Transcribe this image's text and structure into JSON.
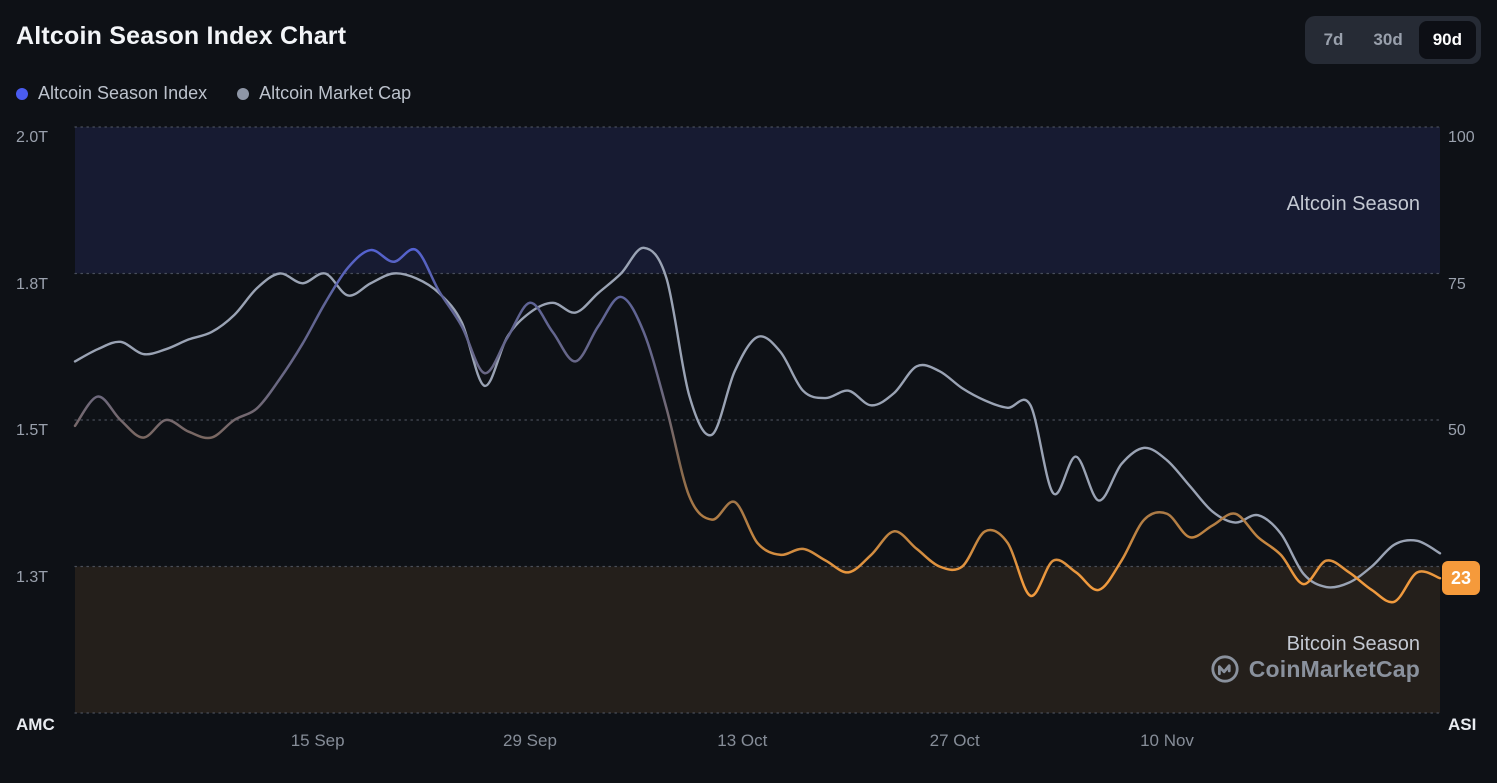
{
  "header": {
    "title": "Altcoin Season Index Chart"
  },
  "ranges": [
    {
      "label": "7d",
      "active": false
    },
    {
      "label": "30d",
      "active": false
    },
    {
      "label": "90d",
      "active": true
    }
  ],
  "legend": [
    {
      "label": "Altcoin Season Index",
      "color": "#4a5cf0"
    },
    {
      "label": "Altcoin Market Cap",
      "color": "#8e96a6"
    }
  ],
  "corner_labels": {
    "left": "AMC",
    "right": "ASI"
  },
  "badge": {
    "value": "23",
    "bg": "#f59a3b",
    "text_color": "#ffffff"
  },
  "watermark": {
    "text": "CoinMarketCap"
  },
  "colors": {
    "background": "#0e1116",
    "gridline": "#565c69",
    "axis_text": "#9aa1ad",
    "band_label": "#c3c8d2",
    "watermark": "#8a919d"
  },
  "chart_data": {
    "type": "line",
    "title": "Altcoin Season Index Chart",
    "timeframe_selected": "90d",
    "total_days": 90,
    "step_days": 1.5,
    "x_ticks": [
      {
        "label": "15 Sep",
        "day": 16
      },
      {
        "label": "29 Sep",
        "day": 30
      },
      {
        "label": "13 Oct",
        "day": 44
      },
      {
        "label": "27 Oct",
        "day": 58
      },
      {
        "label": "10 Nov",
        "day": 72
      }
    ],
    "right_axis": {
      "name": "ASI",
      "range": [
        0,
        100
      ],
      "gridline_values": [
        100,
        75,
        50,
        25,
        0
      ],
      "ticks": [
        {
          "label": "100",
          "value": 100
        },
        {
          "label": "75",
          "value": 75
        },
        {
          "label": "50",
          "value": 50
        }
      ]
    },
    "left_axis": {
      "name": "AMC",
      "ticks": [
        {
          "label": "2.0T",
          "value": 2.0
        },
        {
          "label": "1.8T",
          "value": 1.8
        },
        {
          "label": "1.5T",
          "value": 1.5
        },
        {
          "label": "1.3T",
          "value": 1.3
        }
      ]
    },
    "bands": [
      {
        "label": "Altcoin Season",
        "from": 75,
        "to": 100,
        "fill": "rgba(93,108,252,0.12)"
      },
      {
        "label": "Bitcoin Season",
        "from": 0,
        "to": 25,
        "fill": "rgba(236,160,80,0.10)"
      }
    ],
    "series": [
      {
        "name": "Altcoin Market Cap",
        "axis": "left",
        "color": "#9aa3b4",
        "width": 2.4,
        "values": [
          1.62,
          1.645,
          1.66,
          1.635,
          1.645,
          1.665,
          1.68,
          1.715,
          1.77,
          1.8,
          1.78,
          1.8,
          1.755,
          1.78,
          1.8,
          1.79,
          1.76,
          1.7,
          1.57,
          1.67,
          1.72,
          1.74,
          1.72,
          1.76,
          1.8,
          1.835,
          1.79,
          1.55,
          1.48,
          1.6,
          1.67,
          1.64,
          1.56,
          1.545,
          1.56,
          1.53,
          1.555,
          1.61,
          1.6,
          1.565,
          1.54,
          1.525,
          1.53,
          1.4,
          1.45,
          1.39,
          1.44,
          1.462,
          1.445,
          1.41,
          1.375,
          1.36,
          1.37,
          1.345,
          1.29,
          1.272,
          1.278,
          1.3,
          1.33,
          1.335,
          1.318
        ]
      },
      {
        "name": "Altcoin Season Index",
        "axis": "right",
        "color": "gradient",
        "width": 2.5,
        "values": [
          49,
          54,
          50,
          47,
          50,
          48,
          47,
          50,
          52,
          57,
          63,
          70,
          76,
          79,
          77,
          79,
          72,
          66,
          58,
          64,
          70,
          65,
          60,
          66,
          71,
          65,
          52,
          37,
          33,
          36,
          29,
          27,
          28,
          26,
          24,
          27,
          31,
          28,
          25,
          25,
          31,
          29,
          20,
          26,
          24,
          21,
          26,
          33,
          34,
          30,
          32,
          34,
          30,
          27,
          22,
          26,
          24,
          21,
          19,
          24,
          23
        ]
      }
    ],
    "asi_gradient": [
      {
        "offset": 0,
        "color": "#4d5ef2"
      },
      {
        "offset": 0.2,
        "color": "#5362d8"
      },
      {
        "offset": 0.3,
        "color": "#5f6496"
      },
      {
        "offset": 0.45,
        "color": "#6b6880"
      },
      {
        "offset": 0.58,
        "color": "#84684f"
      },
      {
        "offset": 0.7,
        "color": "#c08441"
      },
      {
        "offset": 0.77,
        "color": "#f09a3e"
      },
      {
        "offset": 1,
        "color": "#f09a3e"
      }
    ],
    "current_value": 23
  }
}
